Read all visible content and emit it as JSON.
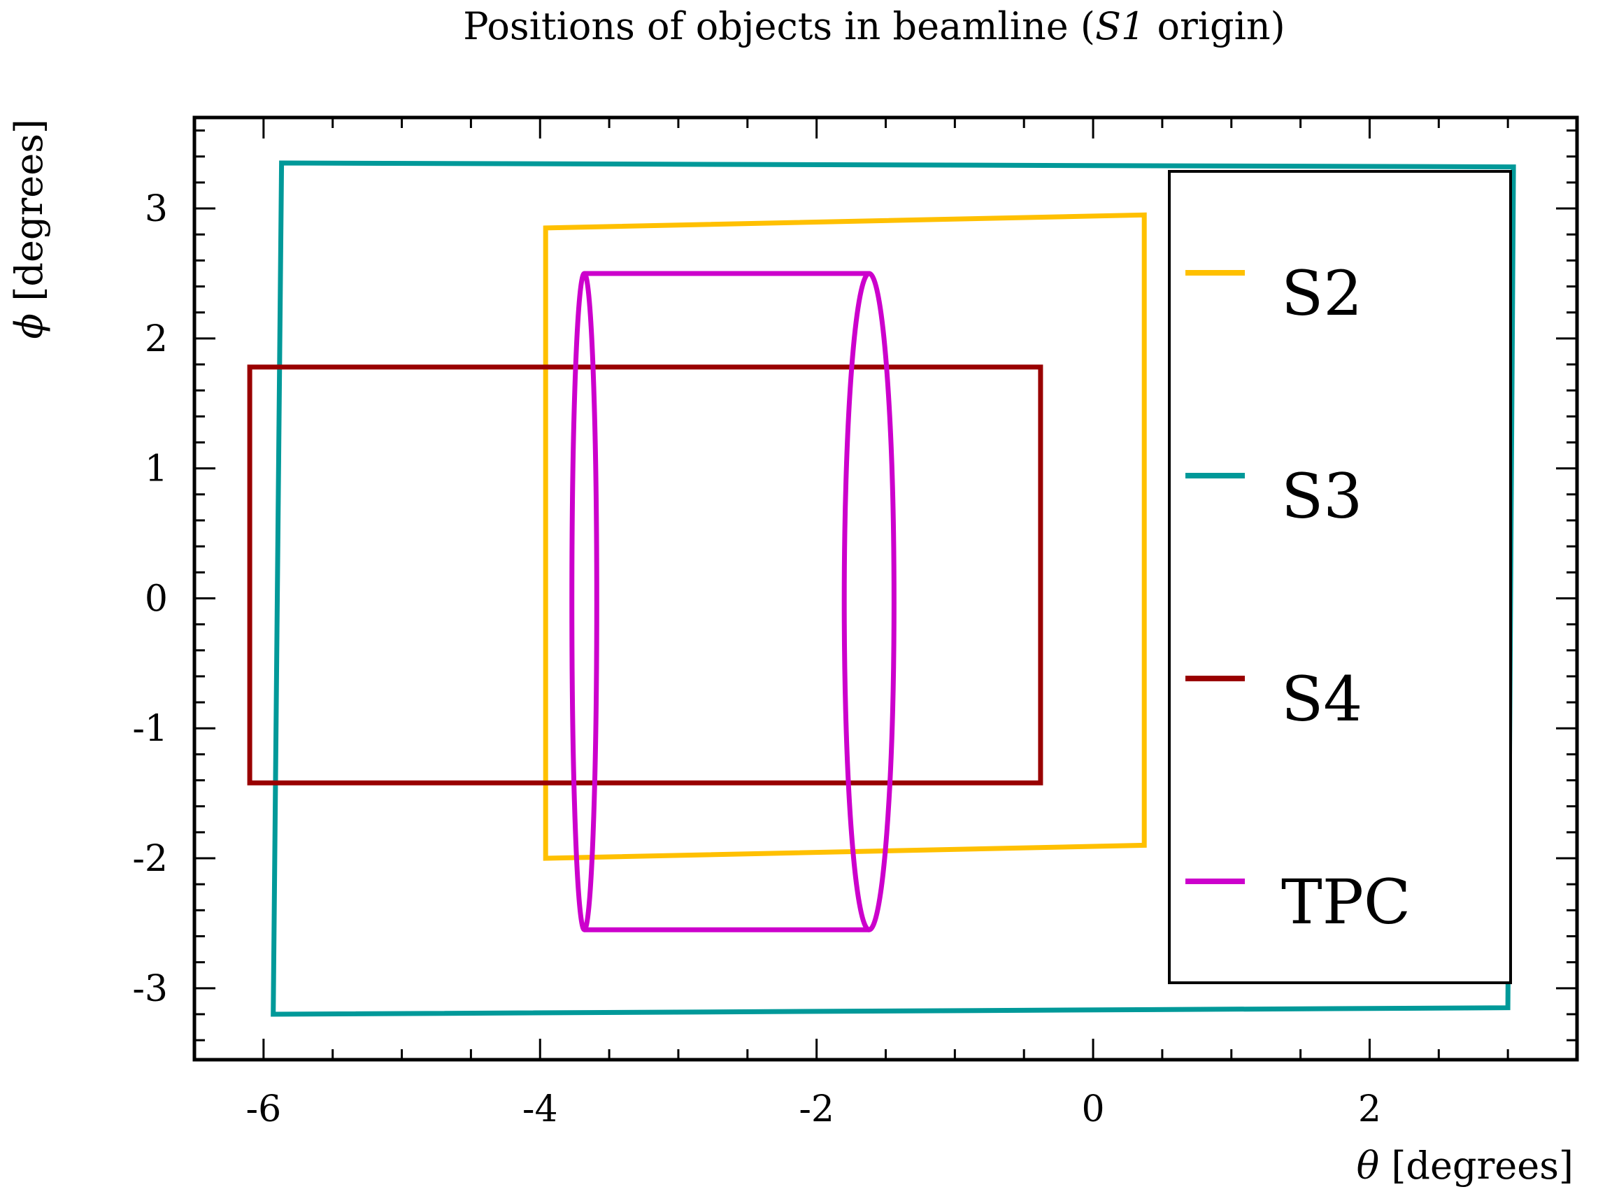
{
  "chart_data": {
    "type": "line",
    "title_prefix": "Positions of objects in beamline (",
    "title_italic": "S1",
    "title_suffix": " origin)",
    "xlabel_symbol": "θ",
    "xlabel_text": " [degrees]",
    "ylabel_symbol": "ϕ",
    "ylabel_text": " [degrees]",
    "xlim": [
      -6.5,
      3.5
    ],
    "ylim": [
      -3.55,
      3.7
    ],
    "x_major_ticks": [
      -6,
      -4,
      -2,
      0,
      2
    ],
    "x_tick_labels": [
      "-6",
      "-4",
      "-2",
      "0",
      "2"
    ],
    "x_minor_step": 0.5,
    "y_major_ticks": [
      -3,
      -2,
      -1,
      0,
      1,
      2,
      3
    ],
    "y_tick_labels": [
      "-3",
      "-2",
      "-1",
      "0",
      "1",
      "2",
      "3"
    ],
    "y_minor_step": 0.2,
    "grid": false,
    "legend_position": "right",
    "series": [
      {
        "name": "S2",
        "color": "#ffc000",
        "kind": "polygon",
        "points": [
          [
            -3.96,
            2.85
          ],
          [
            0.37,
            2.95
          ],
          [
            0.37,
            -1.9
          ],
          [
            -3.96,
            -2.0
          ]
        ]
      },
      {
        "name": "S3",
        "color": "#009999",
        "kind": "polygon",
        "points": [
          [
            -5.87,
            3.35
          ],
          [
            3.04,
            3.32
          ],
          [
            3.0,
            -3.15
          ],
          [
            -5.93,
            -3.2
          ]
        ]
      },
      {
        "name": "S4",
        "color": "#990000",
        "kind": "polygon",
        "points": [
          [
            -6.1,
            1.78
          ],
          [
            -0.38,
            1.78
          ],
          [
            -0.38,
            -1.42
          ],
          [
            -6.1,
            -1.42
          ]
        ]
      },
      {
        "name": "TPC",
        "color": "#cc00cc",
        "kind": "cylinder",
        "left_center_x": -3.68,
        "right_center_x": -1.62,
        "half_width": 0.09,
        "y_min": -2.55,
        "y_max": 2.5
      }
    ]
  }
}
